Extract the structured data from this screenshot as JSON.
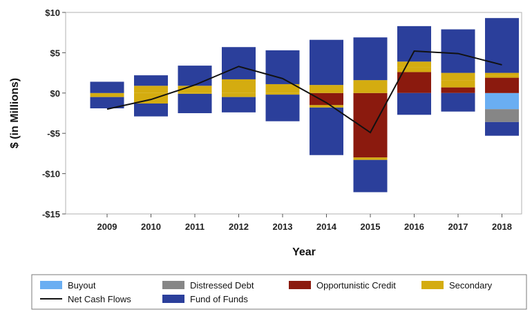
{
  "chart_data": {
    "type": "bar",
    "stacked": true,
    "xlabel": "Year",
    "ylabel": "$ (in Millions)",
    "ylim": [
      -15,
      10
    ],
    "yticks": [
      10,
      5,
      0,
      -5,
      -10,
      -15
    ],
    "ytick_labels": [
      "$10",
      "$5",
      "$0",
      "-$5",
      "-$10",
      "-$15"
    ],
    "categories": [
      "2009",
      "2010",
      "2011",
      "2012",
      "2013",
      "2014",
      "2015",
      "2016",
      "2017",
      "2018"
    ],
    "series": [
      {
        "name": "Buyout",
        "color": "#6aaef2",
        "values": [
          0,
          0,
          0,
          0,
          0,
          0,
          0,
          0,
          0,
          -2.0
        ]
      },
      {
        "name": "Distressed Debt",
        "color": "#868686",
        "values": [
          0,
          0,
          0,
          0,
          0,
          0,
          0,
          0,
          0,
          -1.6
        ]
      },
      {
        "name": "Opportunistic Credit",
        "color": "#8b1a0e",
        "values": [
          0,
          0,
          0,
          0,
          0,
          -1.5,
          -8.0,
          2.6,
          0.7,
          1.9
        ]
      },
      {
        "name": "Secondary",
        "color": "#d4ac10",
        "values": [
          -0.5,
          -1.3,
          -0.1,
          -0.5,
          -0.2,
          -0.3,
          -0.3,
          0.6,
          0.9,
          0.3
        ]
      },
      {
        "name": "Secondary",
        "color": "#d4ac10",
        "values": [
          0,
          0.9,
          0.9,
          1.7,
          1.1,
          1.0,
          1.6,
          0.7,
          0.9,
          0.3
        ]
      },
      {
        "name": "Fund of Funds",
        "color": "#2b3f9b",
        "values": [
          -1.4,
          -1.6,
          -2.4,
          -1.9,
          -3.3,
          -5.9,
          -4.0,
          -2.7,
          -2.3,
          -1.7
        ]
      },
      {
        "name": "Fund of Funds",
        "color": "#2b3f9b",
        "values": [
          1.4,
          1.3,
          2.5,
          4.0,
          4.2,
          5.6,
          5.3,
          4.4,
          5.4,
          6.8
        ]
      }
    ],
    "line": {
      "name": "Net Cash Flows",
      "color": "#111111",
      "values": [
        -2.0,
        -0.8,
        1.0,
        3.3,
        1.8,
        -1.2,
        -4.9,
        5.2,
        4.9,
        3.5
      ]
    },
    "legend": {
      "placement": "bottom",
      "rows": [
        [
          "Buyout",
          "Distressed Debt",
          "Opportunistic Credit",
          "Secondary"
        ],
        [
          "Net Cash Flows",
          "Fund of Funds"
        ]
      ],
      "colors": {
        "Buyout": "#6aaef2",
        "Distressed Debt": "#868686",
        "Opportunistic Credit": "#8b1a0e",
        "Secondary": "#d4ac10",
        "Fund of Funds": "#2b3f9b",
        "Net Cash Flows": "#111111"
      }
    },
    "grid": false
  }
}
